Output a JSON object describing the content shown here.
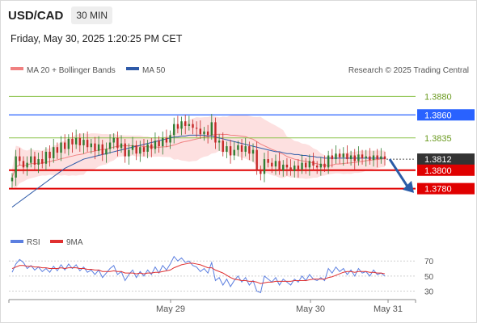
{
  "header": {
    "symbol": "USD/CAD",
    "timeframe": "30 MIN",
    "datetime": "Friday, May 30, 2025 1:20:25 PM CET"
  },
  "legend": {
    "ma20_bb": "MA 20 + Bollinger Bands",
    "ma50": "MA 50",
    "source": "Research © 2025 Trading Central",
    "rsi": "RSI",
    "rsi_ma": "9MA"
  },
  "colors": {
    "ma20": "#f08080",
    "ma50": "#2e5aa8",
    "band_fill": "#fde0e0",
    "bull": "#2e7d32",
    "bear": "#c62828",
    "resistance_green": "#8bc34a",
    "pivot_blue": "#2962ff",
    "support_red": "#e00000",
    "current_bg": "#333333",
    "arrow": "#2a5ca8",
    "rsi": "#5c7fe0",
    "rsi_ma": "#e03030"
  },
  "chart_data": [
    {
      "type": "candlestick",
      "ylim": [
        1.3735,
        1.3897
      ],
      "x_labels": [
        "May 29",
        "May 30",
        "May 31"
      ],
      "levels": [
        {
          "value": 1.388,
          "label": "1.3880",
          "kind": "resistance"
        },
        {
          "value": 1.386,
          "label": "1.3860",
          "kind": "pivot"
        },
        {
          "value": 1.3835,
          "label": "1.3835",
          "kind": "resistance"
        },
        {
          "value": 1.3812,
          "label": "1.3812",
          "kind": "current"
        },
        {
          "value": 1.38,
          "label": "1.3800",
          "kind": "support"
        },
        {
          "value": 1.378,
          "label": "1.3780",
          "kind": "support"
        }
      ],
      "closes": [
        1.3792,
        1.3815,
        1.381,
        1.3803,
        1.3808,
        1.3815,
        1.3806,
        1.3812,
        1.3807,
        1.382,
        1.3813,
        1.3825,
        1.3819,
        1.383,
        1.3823,
        1.3834,
        1.3828,
        1.3835,
        1.3827,
        1.3833,
        1.3825,
        1.3829,
        1.3821,
        1.3828,
        1.3817,
        1.3823,
        1.383,
        1.3835,
        1.3824,
        1.3829,
        1.3815,
        1.3822,
        1.3827,
        1.3818,
        1.3825,
        1.382,
        1.3828,
        1.3823,
        1.3832,
        1.3826,
        1.3835,
        1.383,
        1.3838,
        1.385,
        1.3845,
        1.3853,
        1.3848,
        1.385,
        1.3846,
        1.3845,
        1.3839,
        1.3842,
        1.3838,
        1.3852,
        1.383,
        1.3832,
        1.382,
        1.3826,
        1.3816,
        1.3822,
        1.3827,
        1.382,
        1.3826,
        1.3818,
        1.3822,
        1.38,
        1.3796,
        1.3812,
        1.3808,
        1.3804,
        1.381,
        1.38,
        1.3806,
        1.3803,
        1.3799,
        1.3805,
        1.3801,
        1.3808,
        1.3803,
        1.381,
        1.3805,
        1.3803,
        1.3807,
        1.3803,
        1.3816,
        1.3812,
        1.3818,
        1.3814,
        1.3818,
        1.3812,
        1.3816,
        1.381,
        1.3817,
        1.3813,
        1.3815,
        1.3811,
        1.3816,
        1.3812,
        1.3815,
        1.3812
      ],
      "ma50": [
        1.376,
        1.3763,
        1.3766,
        1.3769,
        1.3772,
        1.3775,
        1.3778,
        1.3781,
        1.3784,
        1.3787,
        1.379,
        1.3793,
        1.3796,
        1.3799,
        1.3802,
        1.3804,
        1.3806,
        1.3808,
        1.381,
        1.3812,
        1.3813,
        1.3814,
        1.3815,
        1.3816,
        1.3817,
        1.3818,
        1.3819,
        1.382,
        1.3821,
        1.3822,
        1.3823,
        1.3824,
        1.3825,
        1.3826,
        1.3827,
        1.3828,
        1.3829,
        1.383,
        1.3831,
        1.3832,
        1.3833,
        1.3834,
        1.3835,
        1.3836,
        1.3836,
        1.3837,
        1.3837,
        1.3838,
        1.3838,
        1.3838,
        1.3838,
        1.3838,
        1.3837,
        1.3837,
        1.3836,
        1.3835,
        1.3834,
        1.3833,
        1.3832,
        1.3831,
        1.383,
        1.3829,
        1.3828,
        1.3827,
        1.3826,
        1.3825,
        1.3824,
        1.3823,
        1.3822,
        1.3821,
        1.382,
        1.382,
        1.3819,
        1.3818,
        1.3818,
        1.3817,
        1.3817,
        1.3816,
        1.3816,
        1.3815,
        1.3815,
        1.3814,
        1.3814,
        1.3813,
        1.3813,
        1.3813,
        1.3813,
        1.3813,
        1.3813,
        1.3813,
        1.3813,
        1.3813,
        1.3813,
        1.3813,
        1.3813,
        1.3813,
        1.3813,
        1.3813,
        1.3813,
        1.3813
      ],
      "projection": {
        "from": 1.3812,
        "to": 1.3778
      }
    },
    {
      "type": "line",
      "name": "RSI",
      "ylim": [
        22,
        82
      ],
      "ticks": [
        70,
        50,
        30
      ],
      "rsi": [
        55,
        66,
        72,
        68,
        60,
        64,
        58,
        62,
        56,
        60,
        55,
        63,
        57,
        65,
        58,
        66,
        60,
        65,
        57,
        62,
        55,
        58,
        52,
        58,
        48,
        54,
        60,
        64,
        52,
        56,
        44,
        52,
        58,
        48,
        56,
        50,
        58,
        52,
        62,
        54,
        64,
        58,
        66,
        76,
        70,
        74,
        68,
        70,
        64,
        62,
        56,
        60,
        54,
        68,
        44,
        48,
        38,
        46,
        36,
        44,
        50,
        42,
        48,
        38,
        44,
        30,
        28,
        50,
        46,
        42,
        48,
        38,
        46,
        42,
        38,
        46,
        42,
        50,
        44,
        52,
        46,
        44,
        48,
        44,
        60,
        54,
        62,
        56,
        60,
        52,
        58,
        50,
        60,
        54,
        56,
        50,
        58,
        52,
        54,
        50
      ],
      "ma": [
        60,
        62,
        64,
        64,
        63,
        63,
        62,
        62,
        61,
        61,
        60,
        60,
        60,
        61,
        60,
        61,
        61,
        61,
        60,
        60,
        59,
        59,
        58,
        58,
        56,
        56,
        56,
        57,
        56,
        56,
        54,
        54,
        54,
        53,
        54,
        53,
        54,
        54,
        55,
        55,
        56,
        57,
        58,
        61,
        63,
        65,
        66,
        67,
        67,
        66,
        65,
        63,
        61,
        61,
        58,
        56,
        54,
        51,
        48,
        46,
        45,
        44,
        44,
        43,
        43,
        42,
        40,
        41,
        42,
        42,
        43,
        43,
        43,
        43,
        43,
        44,
        44,
        44,
        44,
        45,
        46,
        46,
        46,
        46,
        48,
        49,
        51,
        53,
        55,
        56,
        56,
        55,
        56,
        56,
        56,
        55,
        55,
        54,
        54,
        53
      ]
    }
  ]
}
